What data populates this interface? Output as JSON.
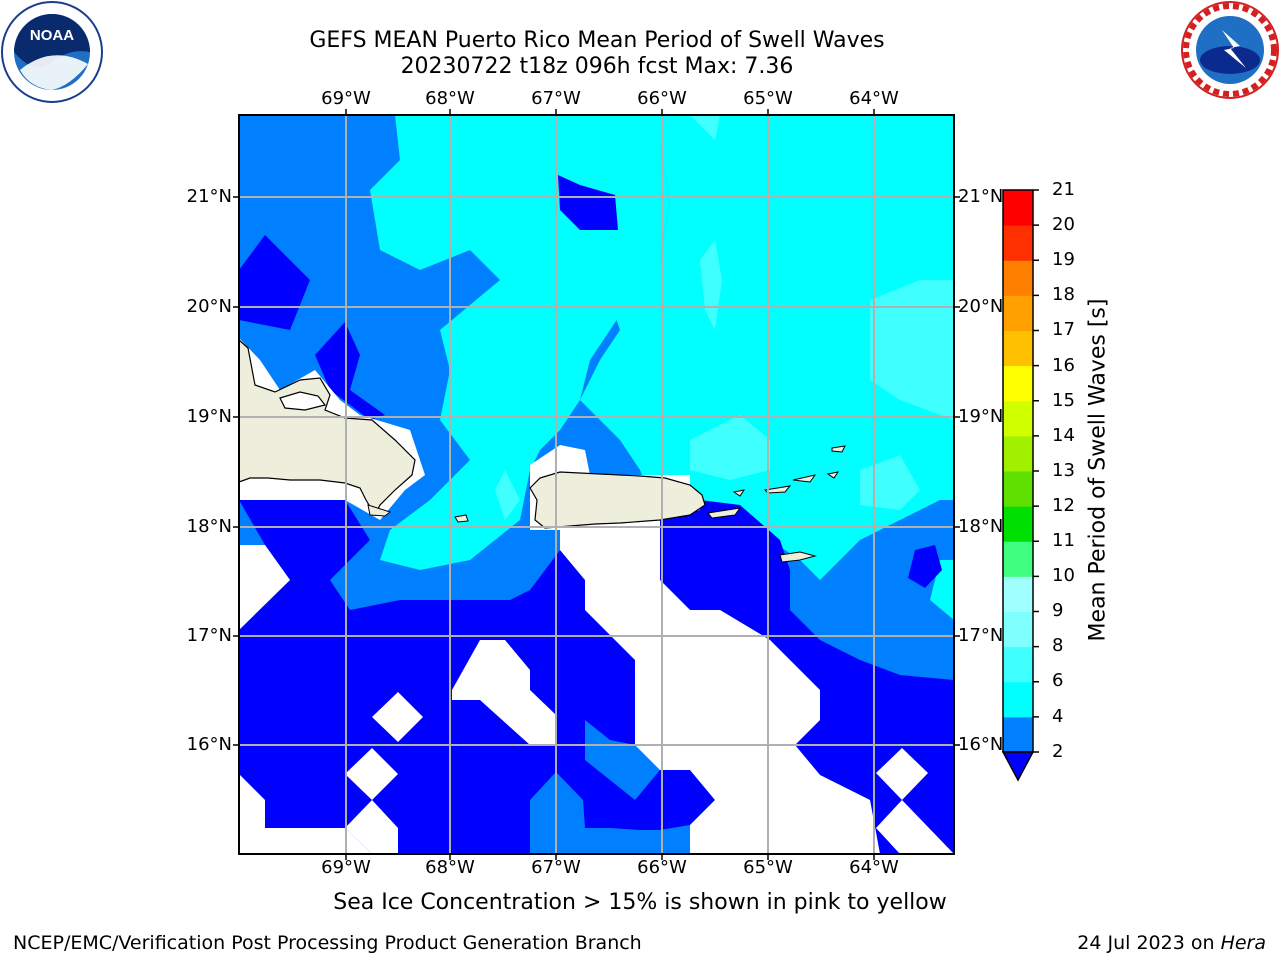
{
  "title": {
    "line1": "GEFS MEAN Puerto Rico Mean Period of Swell Waves",
    "line2": "20230722 t18z 096h fcst   Max: 7.36"
  },
  "map": {
    "lon_labels": [
      "69°W",
      "68°W",
      "67°W",
      "66°W",
      "65°W",
      "64°W"
    ],
    "lat_labels": [
      "21°N",
      "20°N",
      "19°N",
      "18°N",
      "17°N",
      "16°N"
    ],
    "note": "Sea Ice Concentration > 15% is shown in pink to yellow"
  },
  "colorbar": {
    "title": "Mean Period of Swell Waves [s]",
    "ticks": [
      "21",
      "20",
      "19",
      "18",
      "17",
      "16",
      "15",
      "14",
      "13",
      "12",
      "11",
      "10",
      "9",
      "8",
      "6",
      "4",
      "2"
    ],
    "colors": [
      "#0000ff",
      "#0080ff",
      "#00ffff",
      "#40ffff",
      "#80ffff",
      "#a0ffff",
      "#40ff80",
      "#20e040",
      "#00e000",
      "#60e000",
      "#a0f000",
      "#d0ff00",
      "#ffff00",
      "#ffe000",
      "#ffc000",
      "#ffa000",
      "#ff8000",
      "#ff6000",
      "#ff3000",
      "#ff0000"
    ]
  },
  "footer": {
    "left": "NCEP/EMC/Verification Post Processing Product Generation Branch",
    "right_date": "24 Jul 2023 on ",
    "right_host": "Hera"
  },
  "logos": {
    "left": "NOAA",
    "left_ring": "NATIONAL OCEANIC AND ATMOSPHERIC ADMINISTRATION · U.S. DEPARTMENT OF COMMERCE",
    "right_ring": "NATIONAL WEATHER SERVICE"
  }
}
